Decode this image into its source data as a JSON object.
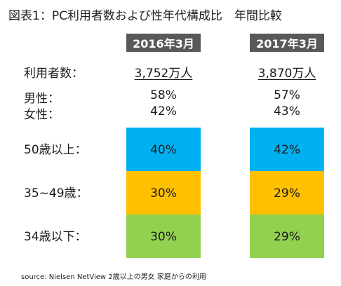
{
  "title": "図表1：PC利用者数および性年代構成比　年間比較",
  "columns": [
    "2016年3月",
    "2017年3月"
  ],
  "rows": {
    "users": {
      "label": "利用者数：",
      "values": [
        "3,752万人",
        "3,870万人"
      ]
    },
    "male": {
      "label": "男性：",
      "values": [
        "58%",
        "57%"
      ]
    },
    "female": {
      "label": "女性：",
      "values": [
        "42%",
        "43%"
      ]
    }
  },
  "chart_data": {
    "type": "bar",
    "stacked": true,
    "categories": [
      "2016年3月",
      "2017年3月"
    ],
    "series": [
      {
        "name": "50歳以上：",
        "values": [
          40,
          42
        ],
        "labels": [
          "40%",
          "42%"
        ],
        "color": "#00b0f0"
      },
      {
        "name": "35~49歳：",
        "values": [
          30,
          29
        ],
        "labels": [
          "30%",
          "29%"
        ],
        "color": "#ffc000"
      },
      {
        "name": "34歳以下：",
        "values": [
          30,
          29
        ],
        "labels": [
          "30%",
          "29%"
        ],
        "color": "#92d050"
      }
    ]
  },
  "source": "source:  Nielsen  NetView   2歳以上の男女  家庭からの利用"
}
